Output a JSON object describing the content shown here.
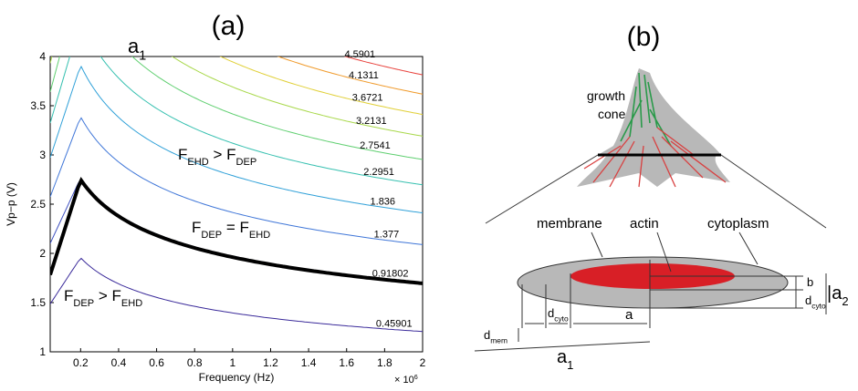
{
  "chart_data": {
    "type": "contour",
    "title": "(a)",
    "x_label": "Frequency (Hz)",
    "y_label": "Vp−p (V)",
    "x_multiplier": [
      "× 10",
      "6"
    ],
    "xlim": [
      0.04,
      2
    ],
    "ylim": [
      1,
      4
    ],
    "xticks": [
      0.2,
      0.4,
      0.6,
      0.8,
      1,
      1.2,
      1.4,
      1.6,
      1.8,
      2
    ],
    "yticks": [
      1,
      1.5,
      2,
      2.5,
      3,
      3.5,
      4
    ],
    "levels": [
      0.45901,
      0.91802,
      1.377,
      1.836,
      2.2951,
      2.7541,
      3.2131,
      3.6721,
      4.1311,
      4.5901
    ],
    "colors": [
      "#3a2a9a",
      "#3d4fc0",
      "#3f76d8",
      "#2fa0d8",
      "#36c0b0",
      "#5fcf70",
      "#a8d84a",
      "#e0cf35",
      "#f09a2a",
      "#e8403a"
    ],
    "top_fragment": [
      "a",
      "1"
    ],
    "annotations": [
      [
        "F",
        "EHD",
        " > F",
        "DEP"
      ],
      [
        "F",
        "DEP",
        " = F",
        "EHD"
      ],
      [
        "F",
        "DEP",
        " > F",
        "EHD"
      ]
    ]
  },
  "diagram": {
    "title": "(b)",
    "growth": "growth",
    "cone": "cone",
    "membrane": "membrane",
    "actin": "actin",
    "cytoplasm": "cytoplasm",
    "b": "b",
    "d_cyto_right": [
      "d",
      "cyto"
    ],
    "a2": [
      "|a",
      "2"
    ],
    "d_mem": [
      "d",
      "mem"
    ],
    "d_cyto": [
      "d",
      "cyto"
    ],
    "a": "a",
    "a1": [
      "a",
      "1"
    ]
  }
}
